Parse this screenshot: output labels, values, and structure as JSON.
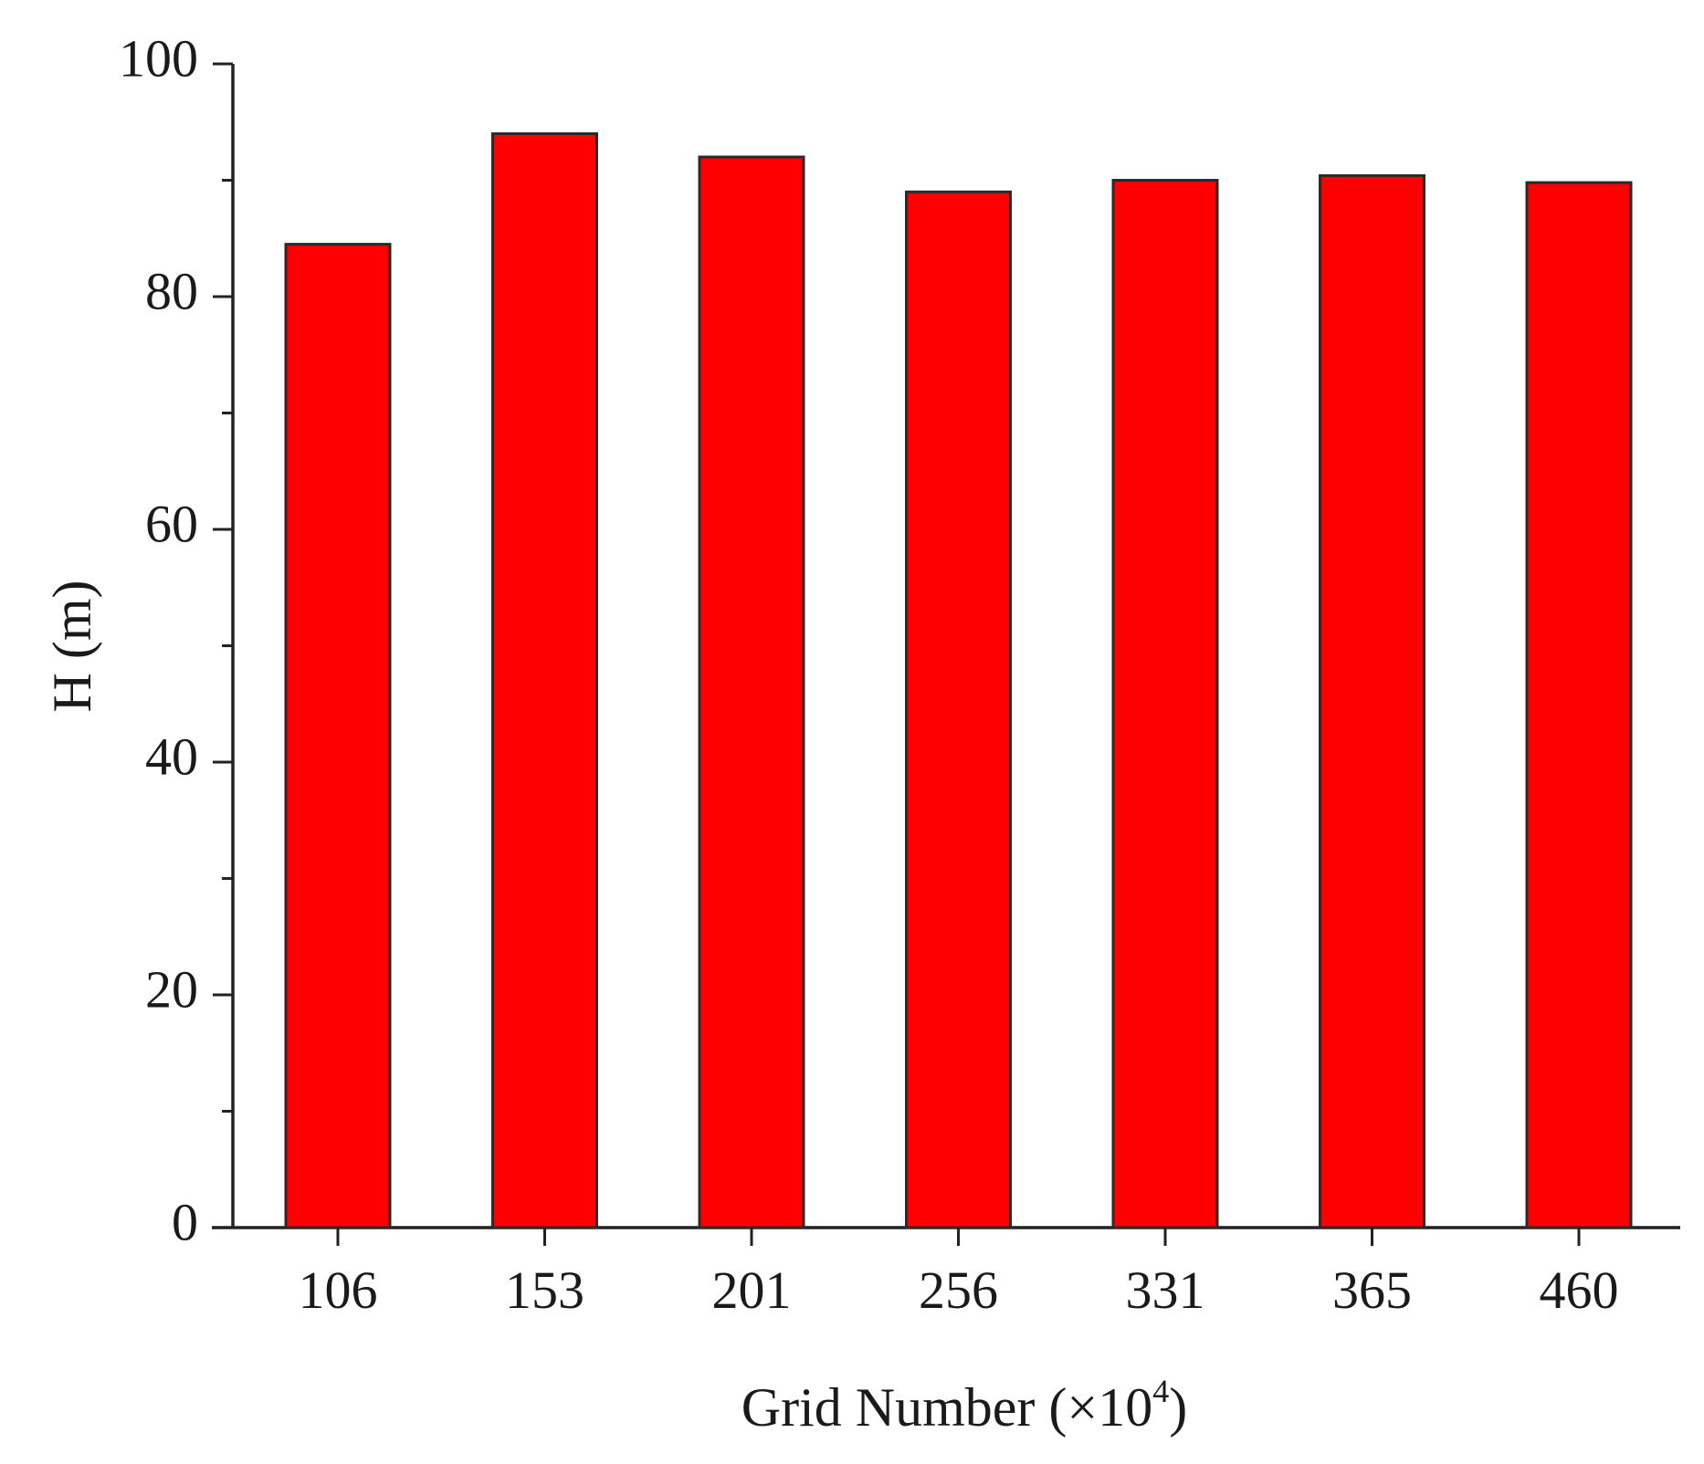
{
  "chart_data": {
    "type": "bar",
    "categories": [
      "106",
      "153",
      "201",
      "256",
      "331",
      "365",
      "460"
    ],
    "values": [
      84.5,
      94.0,
      92.0,
      89.0,
      90.0,
      90.4,
      89.8
    ],
    "xlabel": "Grid Number (×10",
    "xlabel_superscript": "4",
    "xlabel_close": ")",
    "ylabel": "H (m)",
    "ylim": [
      0,
      100
    ],
    "yticks": [
      0,
      20,
      40,
      60,
      80,
      100
    ],
    "y_minor_step": 10,
    "bar_color": "#ff0000",
    "grid": false,
    "legend": "none"
  }
}
